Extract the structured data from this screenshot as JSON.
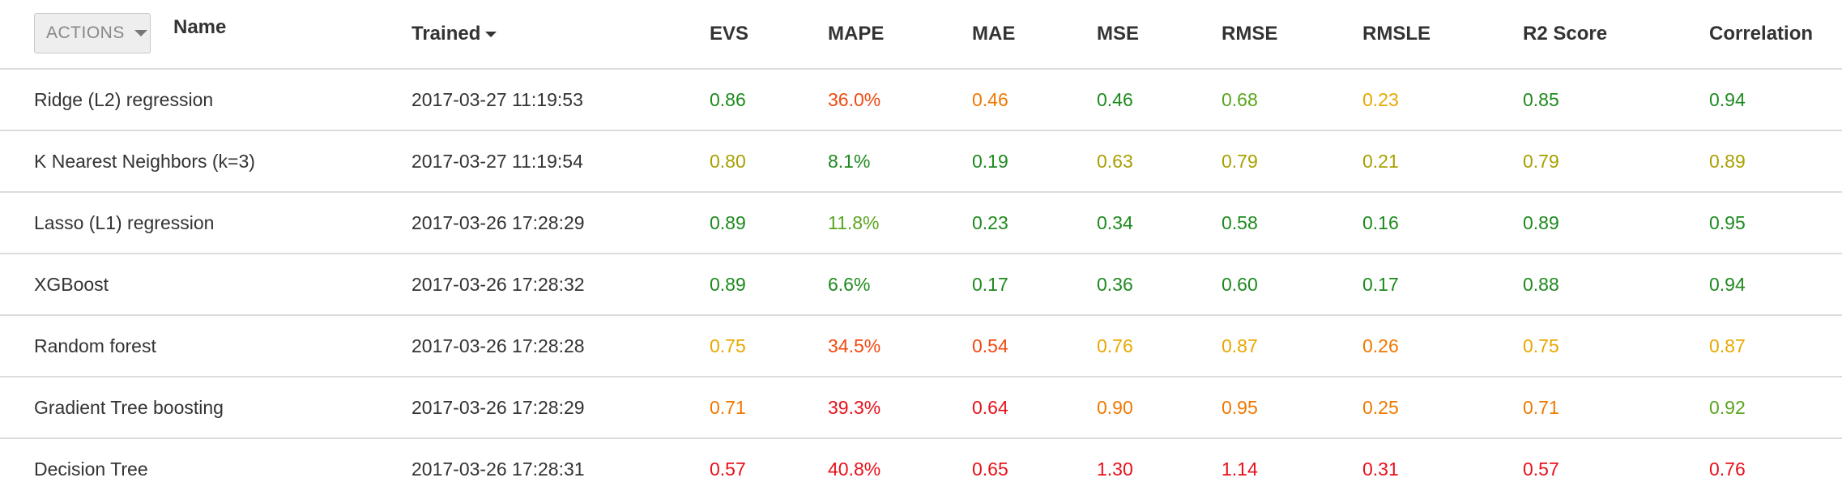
{
  "colors": {
    "dark_green": "#1e8a1e",
    "green": "#5aa51e",
    "olive": "#a8a000",
    "yellow_orange": "#e8a800",
    "orange": "#f07800",
    "red_orange": "#f04a10",
    "red": "#e8101a"
  },
  "header": {
    "actions_label": "ACTIONS",
    "name": "Name",
    "trained": "Trained",
    "evs": "EVS",
    "mape": "MAPE",
    "mae": "MAE",
    "mse": "MSE",
    "rmse": "RMSE",
    "rmsle": "RMSLE",
    "r2": "R2 Score",
    "correlation": "Correlation"
  },
  "rows": [
    {
      "name": "Ridge (L2) regression",
      "trained": "2017-03-27 11:19:53",
      "evs": {
        "v": "0.86",
        "c": "#1e8a1e"
      },
      "mape": {
        "v": "36.0%",
        "c": "#f04a10"
      },
      "mae": {
        "v": "0.46",
        "c": "#f07800"
      },
      "mse": {
        "v": "0.46",
        "c": "#1e8a1e"
      },
      "rmse": {
        "v": "0.68",
        "c": "#5aa51e"
      },
      "rmsle": {
        "v": "0.23",
        "c": "#e8a800"
      },
      "r2": {
        "v": "0.85",
        "c": "#1e8a1e"
      },
      "correlation": {
        "v": "0.94",
        "c": "#1e8a1e"
      }
    },
    {
      "name": "K Nearest Neighbors (k=3)",
      "trained": "2017-03-27 11:19:54",
      "evs": {
        "v": "0.80",
        "c": "#a8a000"
      },
      "mape": {
        "v": "8.1%",
        "c": "#1e8a1e"
      },
      "mae": {
        "v": "0.19",
        "c": "#1e8a1e"
      },
      "mse": {
        "v": "0.63",
        "c": "#a8a000"
      },
      "rmse": {
        "v": "0.79",
        "c": "#a8a000"
      },
      "rmsle": {
        "v": "0.21",
        "c": "#a8a000"
      },
      "r2": {
        "v": "0.79",
        "c": "#a8a000"
      },
      "correlation": {
        "v": "0.89",
        "c": "#a8a000"
      }
    },
    {
      "name": "Lasso (L1) regression",
      "trained": "2017-03-26 17:28:29",
      "evs": {
        "v": "0.89",
        "c": "#1e8a1e"
      },
      "mape": {
        "v": "11.8%",
        "c": "#5aa51e"
      },
      "mae": {
        "v": "0.23",
        "c": "#1e8a1e"
      },
      "mse": {
        "v": "0.34",
        "c": "#1e8a1e"
      },
      "rmse": {
        "v": "0.58",
        "c": "#1e8a1e"
      },
      "rmsle": {
        "v": "0.16",
        "c": "#1e8a1e"
      },
      "r2": {
        "v": "0.89",
        "c": "#1e8a1e"
      },
      "correlation": {
        "v": "0.95",
        "c": "#1e8a1e"
      }
    },
    {
      "name": "XGBoost",
      "trained": "2017-03-26 17:28:32",
      "evs": {
        "v": "0.89",
        "c": "#1e8a1e"
      },
      "mape": {
        "v": "6.6%",
        "c": "#1e8a1e"
      },
      "mae": {
        "v": "0.17",
        "c": "#1e8a1e"
      },
      "mse": {
        "v": "0.36",
        "c": "#1e8a1e"
      },
      "rmse": {
        "v": "0.60",
        "c": "#1e8a1e"
      },
      "rmsle": {
        "v": "0.17",
        "c": "#1e8a1e"
      },
      "r2": {
        "v": "0.88",
        "c": "#1e8a1e"
      },
      "correlation": {
        "v": "0.94",
        "c": "#1e8a1e"
      }
    },
    {
      "name": "Random forest",
      "trained": "2017-03-26 17:28:28",
      "evs": {
        "v": "0.75",
        "c": "#e8a800"
      },
      "mape": {
        "v": "34.5%",
        "c": "#f04a10"
      },
      "mae": {
        "v": "0.54",
        "c": "#f04a10"
      },
      "mse": {
        "v": "0.76",
        "c": "#e8a800"
      },
      "rmse": {
        "v": "0.87",
        "c": "#e8a800"
      },
      "rmsle": {
        "v": "0.26",
        "c": "#f07800"
      },
      "r2": {
        "v": "0.75",
        "c": "#e8a800"
      },
      "correlation": {
        "v": "0.87",
        "c": "#e8a800"
      }
    },
    {
      "name": "Gradient Tree boosting",
      "trained": "2017-03-26 17:28:29",
      "evs": {
        "v": "0.71",
        "c": "#f07800"
      },
      "mape": {
        "v": "39.3%",
        "c": "#e8101a"
      },
      "mae": {
        "v": "0.64",
        "c": "#e8101a"
      },
      "mse": {
        "v": "0.90",
        "c": "#f07800"
      },
      "rmse": {
        "v": "0.95",
        "c": "#f07800"
      },
      "rmsle": {
        "v": "0.25",
        "c": "#f07800"
      },
      "r2": {
        "v": "0.71",
        "c": "#f07800"
      },
      "correlation": {
        "v": "0.92",
        "c": "#5aa51e"
      }
    },
    {
      "name": "Decision Tree",
      "trained": "2017-03-26 17:28:31",
      "evs": {
        "v": "0.57",
        "c": "#e8101a"
      },
      "mape": {
        "v": "40.8%",
        "c": "#e8101a"
      },
      "mae": {
        "v": "0.65",
        "c": "#e8101a"
      },
      "mse": {
        "v": "1.30",
        "c": "#e8101a"
      },
      "rmse": {
        "v": "1.14",
        "c": "#e8101a"
      },
      "rmsle": {
        "v": "0.31",
        "c": "#e8101a"
      },
      "r2": {
        "v": "0.57",
        "c": "#e8101a"
      },
      "correlation": {
        "v": "0.76",
        "c": "#e8101a"
      }
    }
  ]
}
